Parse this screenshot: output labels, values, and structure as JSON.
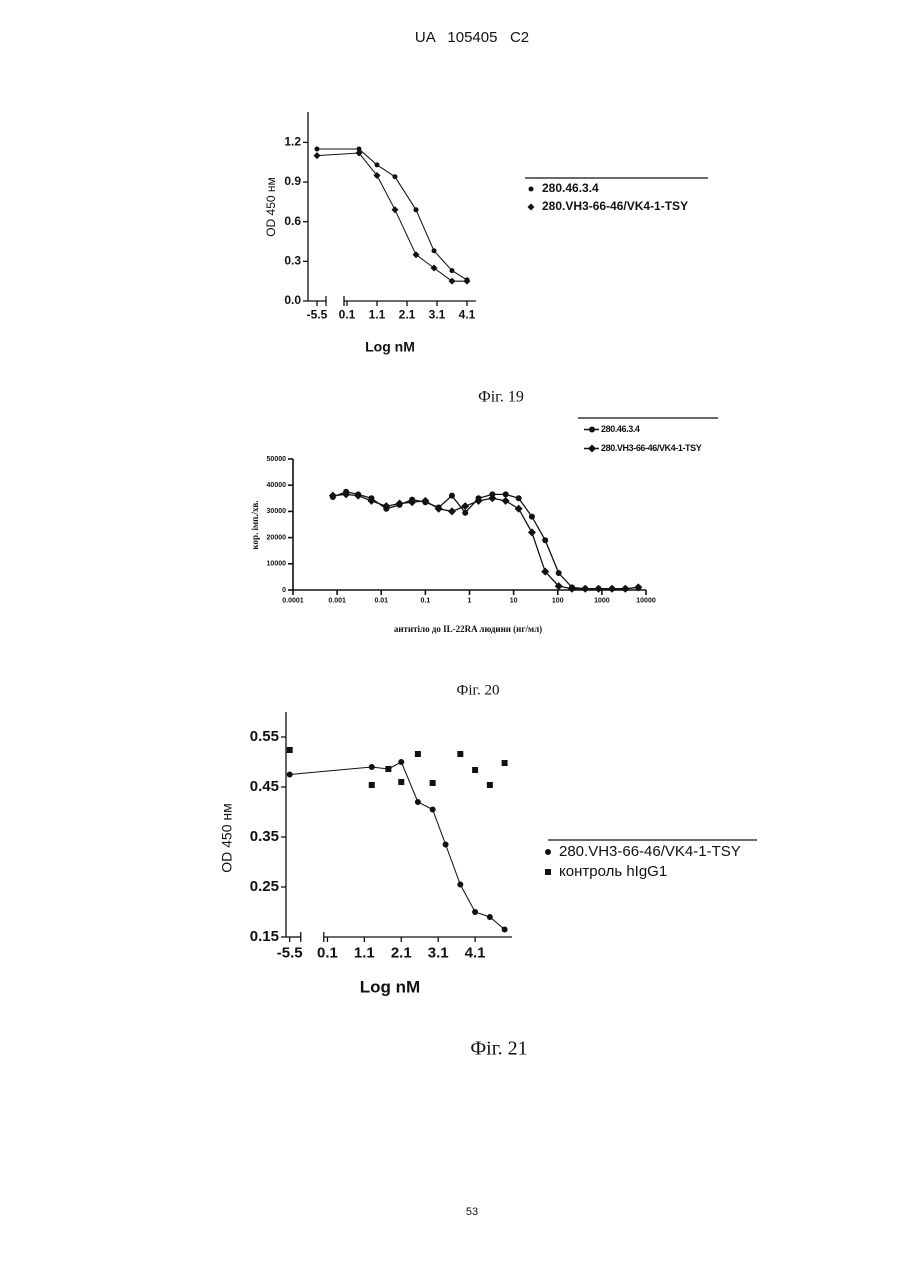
{
  "header": "UA   105405   C2",
  "page_number": "53",
  "chart_data": [
    {
      "type": "scatter",
      "caption": "Фіг. 19",
      "x_label": "Log nM",
      "y_label": "OD 450 нм",
      "x": [
        -5.5,
        0.5,
        1.1,
        1.7,
        2.4,
        3.0,
        3.6,
        4.1
      ],
      "series": [
        {
          "name": "280.46.3.4",
          "color": "#111111",
          "marker": "circle",
          "line": true,
          "values": [
            1.15,
            1.15,
            1.03,
            0.94,
            0.69,
            0.38,
            0.23,
            0.16
          ]
        },
        {
          "name": "280.VH3-66-46/VK4-1-TSY",
          "color": "#111111",
          "marker": "diamond",
          "line": true,
          "values": [
            1.1,
            1.12,
            0.95,
            0.69,
            0.35,
            0.25,
            0.15,
            0.15
          ]
        }
      ],
      "xlim": [
        -5.8,
        4.4
      ],
      "x_break": [
        -5.2,
        0
      ],
      "xticks": [
        -5.5,
        0.1,
        1.1,
        2.1,
        3.1,
        4.1
      ],
      "ylim": [
        0,
        1.43
      ],
      "yticks": [
        {
          "value": 0,
          "label": "0.0"
        },
        0.3,
        0.6,
        0.9,
        1.2
      ]
    },
    {
      "type": "line",
      "caption": "Фіг. 20",
      "x_label": "антитіло до IL-22RA людини (нг/мл)",
      "y_label": "кор. імп./хв.",
      "log_x": true,
      "x": [
        0.0008,
        0.0016,
        0.003,
        0.006,
        0.013,
        0.026,
        0.05,
        0.1,
        0.2,
        0.4,
        0.8,
        1.6,
        3.3,
        6.6,
        13,
        26,
        52,
        105,
        210,
        420,
        840,
        1700,
        3400,
        6700
      ],
      "series": [
        {
          "name": "280.46.3.4",
          "color": "#111111",
          "marker": "circle",
          "line": true,
          "values": [
            35500,
            37500,
            36500,
            35000,
            31000,
            32500,
            34500,
            33500,
            31500,
            36000,
            29500,
            35000,
            36500,
            36500,
            35000,
            28000,
            19000,
            6500,
            1000,
            500,
            500,
            500,
            500,
            1000
          ]
        },
        {
          "name": "280.VH3-66-46/VK4-1-TSY",
          "color": "#111111",
          "marker": "diamond",
          "line": true,
          "values": [
            36000,
            36500,
            36000,
            34000,
            32000,
            33000,
            33500,
            34000,
            31000,
            30000,
            32000,
            34000,
            35000,
            34000,
            31000,
            22000,
            7000,
            1500,
            500,
            500,
            500,
            500,
            500,
            1000
          ]
        }
      ],
      "xlim": [
        0.0001,
        10000
      ],
      "xticks": [
        0.0001,
        0.001,
        0.01,
        0.1,
        1,
        10,
        100,
        1000,
        10000
      ],
      "ylim": [
        0,
        50000
      ],
      "yticks": [
        0,
        10000,
        20000,
        30000,
        40000,
        50000
      ]
    },
    {
      "type": "scatter",
      "caption": "Фіг. 21",
      "x_label": "Log nM",
      "y_label": "OD 450 нм",
      "x": [
        -5.5,
        1.3,
        1.75,
        2.1,
        2.55,
        2.95,
        3.3,
        3.7,
        4.1,
        4.5,
        4.9
      ],
      "series": [
        {
          "name": "280.VH3-66-46/VK4-1-TSY",
          "color": "#111111",
          "marker": "circle",
          "line": true,
          "values": [
            0.475,
            0.49,
            0.486,
            0.5,
            0.42,
            0.405,
            0.335,
            0.255,
            0.2,
            0.19,
            0.165
          ]
        },
        {
          "name": "контроль hIgG1",
          "color": "#111111",
          "marker": "square",
          "line": false,
          "values": [
            0.524,
            0.454,
            0.486,
            0.46,
            0.516,
            0.458,
            null,
            0.516,
            0.484,
            0.454,
            0.498
          ]
        }
      ],
      "xlim": [
        -5.6,
        5.1
      ],
      "x_break": [
        -5.2,
        0
      ],
      "xticks": [
        -5.5,
        0.1,
        1.1,
        2.1,
        3.1,
        4.1
      ],
      "ylim": [
        0.15,
        0.6
      ],
      "yticks": [
        0.15,
        0.25,
        0.35,
        0.45,
        0.55
      ]
    }
  ]
}
